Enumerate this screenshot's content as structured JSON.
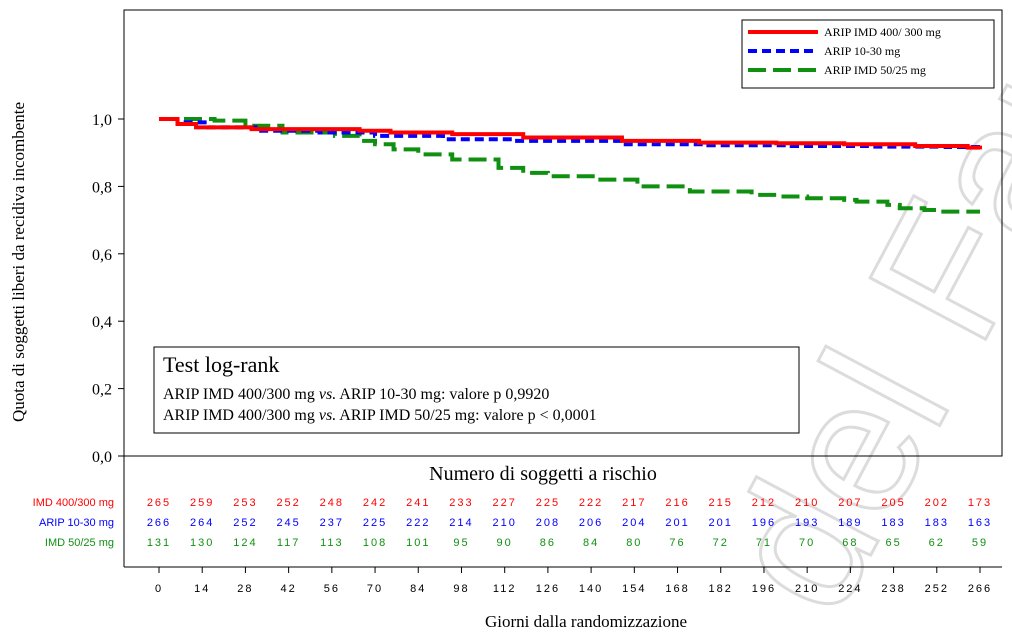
{
  "chart_data": {
    "type": "line",
    "title": "",
    "xlabel": "Giorni dalla randomizzazione",
    "ylabel": "Quota di soggetti liberi da recidiva incombente",
    "xlim": [
      0,
      266
    ],
    "ylim": [
      0,
      1.0
    ],
    "x_ticks": [
      0,
      14,
      28,
      42,
      56,
      70,
      84,
      98,
      112,
      126,
      140,
      154,
      168,
      182,
      196,
      210,
      224,
      238,
      252,
      266
    ],
    "x_tick_labels": [
      "0",
      "14",
      "28",
      "42",
      "56",
      "70",
      "84",
      "98",
      "112",
      "126",
      "140",
      "154",
      "168",
      "182",
      "196",
      "210",
      "224",
      "238",
      "252",
      "266"
    ],
    "y_ticks": [
      0,
      0.2,
      0.4,
      0.6,
      0.8,
      1.0
    ],
    "y_tick_labels": [
      "0,0",
      "0,2",
      "0,4",
      "0,6",
      "0,8",
      "1,0"
    ],
    "legend_position": "top-right",
    "series": [
      {
        "name": "ARIP IMD 400/ 300 mg",
        "color": "#ff0000",
        "style": "solid",
        "x": [
          0,
          6,
          12,
          30,
          65,
          75,
          95,
          118,
          150,
          175,
          200,
          222,
          245,
          262,
          266
        ],
        "y": [
          1.0,
          0.985,
          0.975,
          0.97,
          0.965,
          0.96,
          0.955,
          0.945,
          0.935,
          0.93,
          0.928,
          0.925,
          0.92,
          0.915,
          0.91
        ]
      },
      {
        "name": "ARIP 10-30 mg",
        "color": "#0000ff",
        "style": "dashed",
        "x": [
          0,
          6,
          16,
          32,
          52,
          70,
          92,
          115,
          150,
          178,
          205,
          230,
          255,
          266
        ],
        "y": [
          1.0,
          0.99,
          0.975,
          0.965,
          0.96,
          0.95,
          0.94,
          0.935,
          0.925,
          0.922,
          0.92,
          0.918,
          0.917,
          0.917
        ]
      },
      {
        "name": "ARIP IMD 50/25 mg",
        "color": "#109010",
        "style": "dashed",
        "x": [
          0,
          18,
          28,
          40,
          57,
          65,
          70,
          76,
          84,
          95,
          110,
          118,
          126,
          142,
          155,
          172,
          192,
          200,
          210,
          222,
          226,
          236,
          240,
          248,
          252,
          266
        ],
        "y": [
          1.0,
          0.995,
          0.98,
          0.96,
          0.95,
          0.935,
          0.925,
          0.91,
          0.895,
          0.88,
          0.855,
          0.84,
          0.83,
          0.82,
          0.8,
          0.785,
          0.775,
          0.77,
          0.765,
          0.76,
          0.755,
          0.745,
          0.735,
          0.73,
          0.725,
          0.725
        ]
      }
    ],
    "annotation": {
      "title": "Test log-rank",
      "lines": [
        [
          "ARIP IMD 400/300 mg ",
          "vs.",
          " ARIP 10-30 mg: valore p 0,9920"
        ],
        [
          "ARIP IMD 400/300 mg ",
          "vs.",
          " ARIP IMD 50/25 mg: valore p < 0,0001"
        ]
      ]
    },
    "risk_table": {
      "title": "Numero di soggetti a rischio",
      "rows": [
        {
          "label": "IMD 400/300 mg",
          "color": "#ff0000",
          "values": [
            "265",
            "259",
            "253",
            "252",
            "248",
            "242",
            "241",
            "233",
            "227",
            "225",
            "222",
            "217",
            "216",
            "215",
            "212",
            "210",
            "207",
            "205",
            "202",
            "173"
          ]
        },
        {
          "label": "ARIP 10-30 mg",
          "color": "#0000ff",
          "values": [
            "266",
            "264",
            "252",
            "245",
            "237",
            "225",
            "222",
            "214",
            "210",
            "208",
            "206",
            "204",
            "201",
            "201",
            "196",
            "193",
            "189",
            "183",
            "183",
            "163"
          ]
        },
        {
          "label": "IMD 50/25 mg",
          "color": "#109010",
          "values": [
            "131",
            "130",
            "124",
            "117",
            "113",
            "108",
            "101",
            "95",
            "90",
            "86",
            "84",
            "80",
            "76",
            "72",
            "71",
            "70",
            "68",
            "65",
            "62",
            "59"
          ]
        }
      ]
    }
  }
}
